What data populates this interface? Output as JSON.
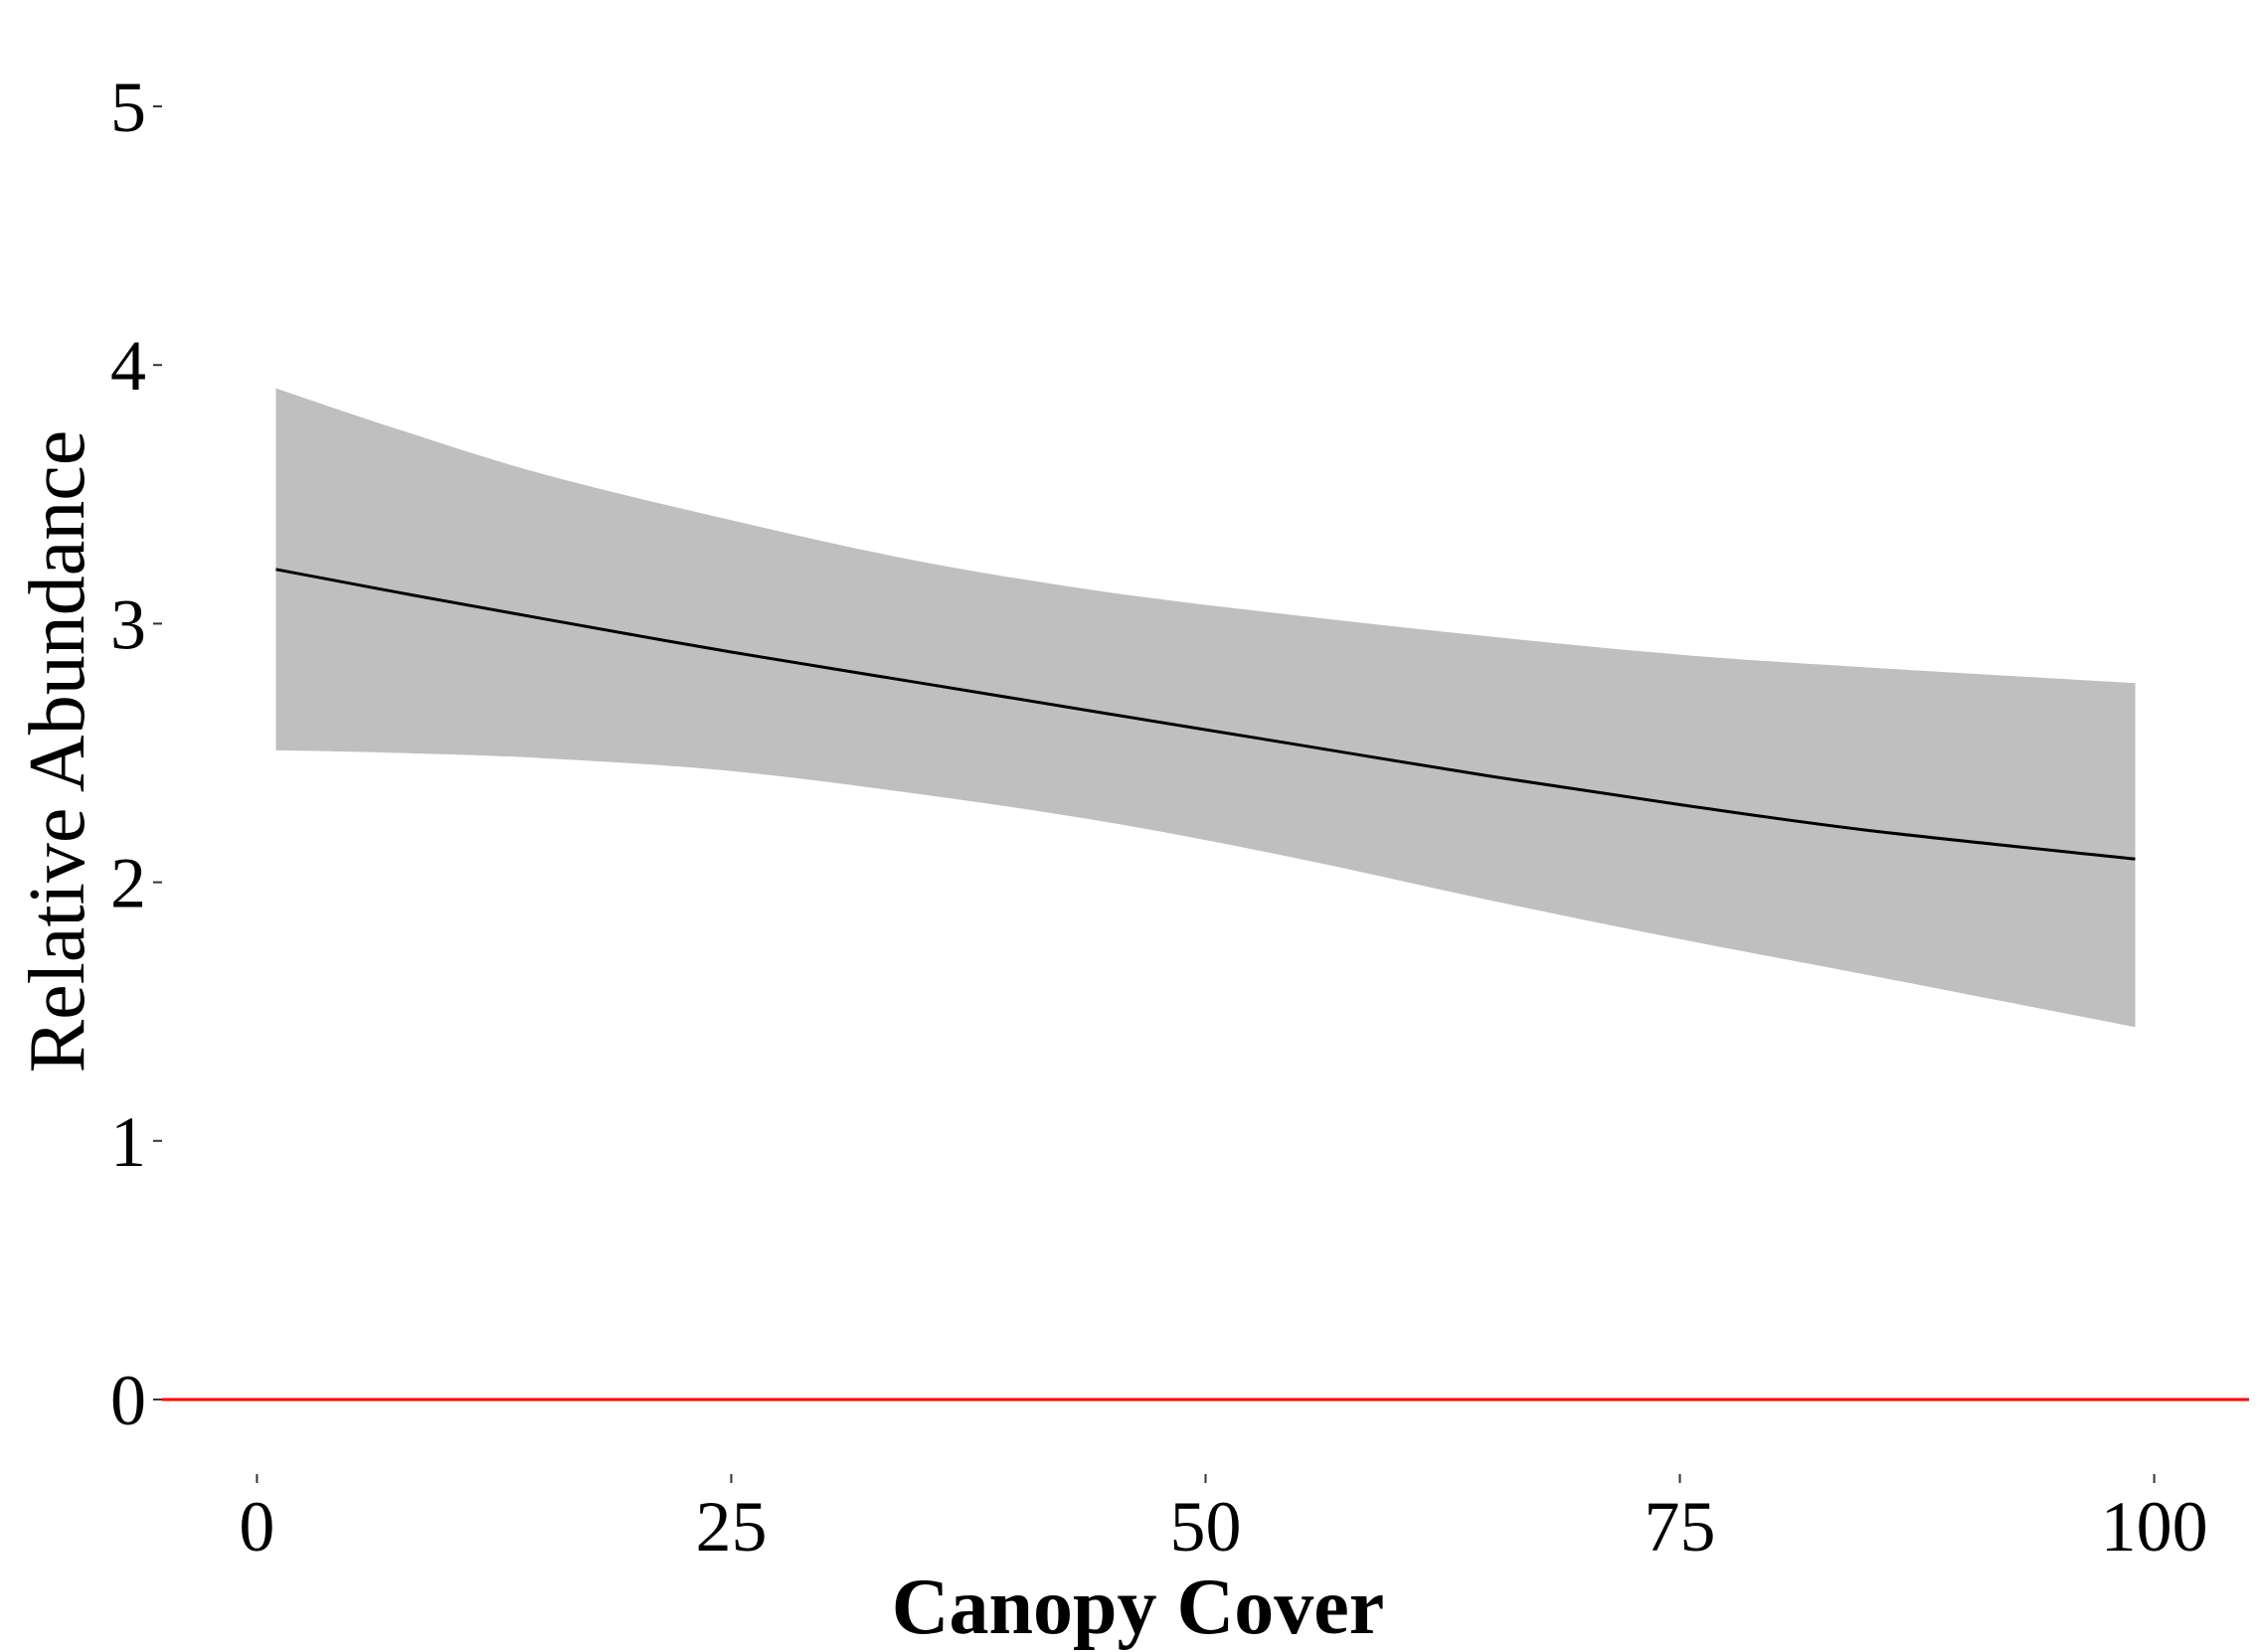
{
  "chart_data": {
    "type": "line",
    "title": "",
    "xlabel": "Canopy Cover",
    "ylabel": "Relative Abundance",
    "xlim": [
      -5,
      105
    ],
    "ylim": [
      -0.2,
      5.2
    ],
    "x_ticks": [
      0,
      25,
      50,
      75,
      100
    ],
    "y_ticks": [
      0,
      1,
      2,
      3,
      4,
      5
    ],
    "x_tick_labels": [
      "0",
      "25",
      "50",
      "75",
      "100"
    ],
    "y_tick_labels": [
      "0",
      "1",
      "2",
      "3",
      "4",
      "5"
    ],
    "grid": false,
    "legend": "none",
    "series": [
      {
        "x": [
          1,
          7.5,
          15,
          25,
          35,
          45,
          55,
          65,
          75,
          85,
          99
        ],
        "values": [
          3.21,
          3.12,
          3.02,
          2.89,
          2.77,
          2.65,
          2.53,
          2.41,
          2.3,
          2.2,
          2.09
        ],
        "lower": [
          2.51,
          2.5,
          2.48,
          2.43,
          2.34,
          2.23,
          2.09,
          1.93,
          1.78,
          1.64,
          1.44
        ],
        "upper": [
          3.91,
          3.75,
          3.58,
          3.4,
          3.24,
          3.12,
          3.03,
          2.95,
          2.88,
          2.83,
          2.77
        ]
      }
    ],
    "reference_line": {
      "y": 0,
      "color": "#ff0000"
    },
    "colors": {
      "line": "#000000",
      "band": "#bfbfbf",
      "reference": "#ff0000",
      "tick": "#333333"
    }
  }
}
